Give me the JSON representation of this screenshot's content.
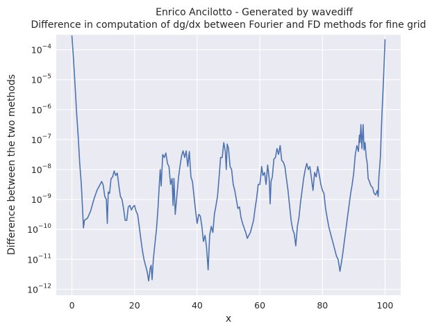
{
  "chart_data": {
    "type": "line",
    "title_line1": "Enrico Ancilotto - Generated by wavediff",
    "title_line2": "Difference in computation of dg/dx between Fourier and FD methods for fine grid",
    "xlabel": "x",
    "ylabel": "Difference between the two methods",
    "xlim": [
      -5,
      105
    ],
    "ylog_lim": [
      -12.2,
      -3.5
    ],
    "yscale": "log",
    "grid": true,
    "x_ticks": [
      "0",
      "20",
      "40",
      "60",
      "80",
      "100"
    ],
    "y_ticks": [
      {
        "base": "10",
        "exp": "−4",
        "log": -4
      },
      {
        "base": "10",
        "exp": "−5",
        "log": -5
      },
      {
        "base": "10",
        "exp": "−6",
        "log": -6
      },
      {
        "base": "10",
        "exp": "−7",
        "log": -7
      },
      {
        "base": "10",
        "exp": "−8",
        "log": -8
      },
      {
        "base": "10",
        "exp": "−9",
        "log": -9
      },
      {
        "base": "10",
        "exp": "−10",
        "log": -10
      },
      {
        "base": "10",
        "exp": "−11",
        "log": -11
      },
      {
        "base": "10",
        "exp": "−12",
        "log": -12
      }
    ],
    "series": [
      {
        "color": "#4c72b0",
        "points": [
          [
            0,
            -3.52
          ],
          [
            0.5,
            -4.3
          ],
          [
            1,
            -5.2
          ],
          [
            1.5,
            -6.1
          ],
          [
            2,
            -6.9
          ],
          [
            2.5,
            -7.8
          ],
          [
            3,
            -8.5
          ],
          [
            3.3,
            -9.1
          ],
          [
            3.7,
            -9.95
          ],
          [
            4,
            -9.7
          ],
          [
            5,
            -9.62
          ],
          [
            6,
            -9.38
          ],
          [
            7,
            -9.0
          ],
          [
            8,
            -8.7
          ],
          [
            9,
            -8.5
          ],
          [
            9.5,
            -8.4
          ],
          [
            10,
            -8.52
          ],
          [
            10.5,
            -8.9
          ],
          [
            11,
            -9.0
          ],
          [
            11.3,
            -9.8
          ],
          [
            11.6,
            -8.75
          ],
          [
            12,
            -8.8
          ],
          [
            12.5,
            -8.3
          ],
          [
            13,
            -8.25
          ],
          [
            13.5,
            -8.05
          ],
          [
            14,
            -8.2
          ],
          [
            14.5,
            -8.12
          ],
          [
            15,
            -8.55
          ],
          [
            15.5,
            -8.9
          ],
          [
            16,
            -9.0
          ],
          [
            16.5,
            -9.3
          ],
          [
            17,
            -9.7
          ],
          [
            17.5,
            -9.7
          ],
          [
            18,
            -9.25
          ],
          [
            18.5,
            -9.2
          ],
          [
            19,
            -9.35
          ],
          [
            19.5,
            -9.25
          ],
          [
            20,
            -9.2
          ],
          [
            20.5,
            -9.4
          ],
          [
            21,
            -9.5
          ],
          [
            21.5,
            -9.9
          ],
          [
            22,
            -10.3
          ],
          [
            22.5,
            -10.7
          ],
          [
            23,
            -11.0
          ],
          [
            23.5,
            -11.2
          ],
          [
            24,
            -11.4
          ],
          [
            24.5,
            -11.72
          ],
          [
            25,
            -11.3
          ],
          [
            25.3,
            -11.2
          ],
          [
            25.6,
            -11.68
          ],
          [
            26,
            -11.0
          ],
          [
            26.5,
            -10.5
          ],
          [
            27,
            -10.0
          ],
          [
            27.5,
            -9.3
          ],
          [
            27.8,
            -8.7
          ],
          [
            28.2,
            -8.0
          ],
          [
            28.5,
            -8.55
          ],
          [
            29,
            -7.5
          ],
          [
            29.5,
            -7.6
          ],
          [
            30,
            -7.45
          ],
          [
            30.5,
            -7.8
          ],
          [
            31,
            -7.9
          ],
          [
            31.5,
            -8.5
          ],
          [
            32,
            -8.3
          ],
          [
            32.3,
            -9.2
          ],
          [
            32.6,
            -8.3
          ],
          [
            33,
            -9.5
          ],
          [
            33.5,
            -8.9
          ],
          [
            34,
            -8.3
          ],
          [
            34.5,
            -7.9
          ],
          [
            35,
            -7.55
          ],
          [
            35.5,
            -7.38
          ],
          [
            36,
            -7.6
          ],
          [
            36.5,
            -7.38
          ],
          [
            37,
            -7.9
          ],
          [
            37.5,
            -7.4
          ],
          [
            38,
            -8.25
          ],
          [
            38.5,
            -8.4
          ],
          [
            39,
            -8.9
          ],
          [
            39.5,
            -9.4
          ],
          [
            40,
            -9.8
          ],
          [
            40.5,
            -9.5
          ],
          [
            41,
            -9.55
          ],
          [
            41.5,
            -9.9
          ],
          [
            42,
            -10.4
          ],
          [
            42.5,
            -10.2
          ],
          [
            43,
            -10.6
          ],
          [
            43.5,
            -11.35
          ],
          [
            44,
            -10.2
          ],
          [
            44.5,
            -9.9
          ],
          [
            45,
            -10.1
          ],
          [
            45.5,
            -9.5
          ],
          [
            46,
            -9.2
          ],
          [
            46.5,
            -8.9
          ],
          [
            47,
            -8.25
          ],
          [
            47.5,
            -7.6
          ],
          [
            48,
            -7.6
          ],
          [
            48.5,
            -7.1
          ],
          [
            49,
            -7.4
          ],
          [
            49.3,
            -8.0
          ],
          [
            49.6,
            -7.15
          ],
          [
            50,
            -7.3
          ],
          [
            50.5,
            -7.9
          ],
          [
            51,
            -8.0
          ],
          [
            51.5,
            -8.5
          ],
          [
            52,
            -8.7
          ],
          [
            52.5,
            -9.0
          ],
          [
            53,
            -9.3
          ],
          [
            53.5,
            -9.25
          ],
          [
            54,
            -9.6
          ],
          [
            54.5,
            -9.8
          ],
          [
            55,
            -9.95
          ],
          [
            55.5,
            -10.1
          ],
          [
            56,
            -10.3
          ],
          [
            56.5,
            -10.2
          ],
          [
            57,
            -10.1
          ],
          [
            57.5,
            -9.9
          ],
          [
            58,
            -9.7
          ],
          [
            58.5,
            -9.3
          ],
          [
            59,
            -8.95
          ],
          [
            59.5,
            -8.5
          ],
          [
            60,
            -8.5
          ],
          [
            60.3,
            -8.25
          ],
          [
            60.6,
            -7.9
          ],
          [
            61,
            -8.2
          ],
          [
            61.5,
            -8.1
          ],
          [
            62,
            -8.5
          ],
          [
            62.5,
            -7.85
          ],
          [
            63,
            -8.3
          ],
          [
            63.3,
            -9.15
          ],
          [
            63.6,
            -8.4
          ],
          [
            64,
            -8.25
          ],
          [
            64.5,
            -7.65
          ],
          [
            65,
            -7.6
          ],
          [
            65.5,
            -7.3
          ],
          [
            66,
            -7.5
          ],
          [
            66.5,
            -7.2
          ],
          [
            67,
            -7.7
          ],
          [
            67.5,
            -7.75
          ],
          [
            68,
            -7.9
          ],
          [
            68.5,
            -8.3
          ],
          [
            69,
            -8.7
          ],
          [
            69.5,
            -9.2
          ],
          [
            70,
            -9.7
          ],
          [
            70.5,
            -10.0
          ],
          [
            71,
            -10.15
          ],
          [
            71.5,
            -10.55
          ],
          [
            72,
            -9.9
          ],
          [
            72.5,
            -9.6
          ],
          [
            73,
            -9.1
          ],
          [
            73.5,
            -8.7
          ],
          [
            74,
            -8.3
          ],
          [
            74.5,
            -8.0
          ],
          [
            75,
            -7.8
          ],
          [
            75.5,
            -8.0
          ],
          [
            76,
            -7.9
          ],
          [
            76.5,
            -8.3
          ],
          [
            77,
            -8.7
          ],
          [
            77.5,
            -8.1
          ],
          [
            78,
            -8.25
          ],
          [
            78.5,
            -7.9
          ],
          [
            79,
            -8.2
          ],
          [
            79.5,
            -8.5
          ],
          [
            80,
            -8.7
          ],
          [
            80.5,
            -8.8
          ],
          [
            81,
            -9.3
          ],
          [
            81.5,
            -9.6
          ],
          [
            82,
            -9.9
          ],
          [
            82.5,
            -10.1
          ],
          [
            83,
            -10.3
          ],
          [
            83.5,
            -10.5
          ],
          [
            84,
            -10.7
          ],
          [
            84.5,
            -10.9
          ],
          [
            85,
            -11.0
          ],
          [
            85.3,
            -11.2
          ],
          [
            85.6,
            -11.4
          ],
          [
            86,
            -11.15
          ],
          [
            86.5,
            -10.8
          ],
          [
            87,
            -10.4
          ],
          [
            87.5,
            -10.0
          ],
          [
            88,
            -9.6
          ],
          [
            88.5,
            -9.2
          ],
          [
            89,
            -8.8
          ],
          [
            89.5,
            -8.5
          ],
          [
            90,
            -8.1
          ],
          [
            90.5,
            -7.5
          ],
          [
            91,
            -7.2
          ],
          [
            91.5,
            -7.4
          ],
          [
            91.8,
            -6.85
          ],
          [
            92,
            -7.1
          ],
          [
            92.3,
            -6.5
          ],
          [
            92.6,
            -7.3
          ],
          [
            93,
            -6.5
          ],
          [
            93.3,
            -7.35
          ],
          [
            93.6,
            -7.1
          ],
          [
            94,
            -7.6
          ],
          [
            94.3,
            -7.8
          ],
          [
            94.6,
            -8.3
          ],
          [
            95,
            -8.4
          ],
          [
            95.5,
            -8.55
          ],
          [
            96,
            -8.6
          ],
          [
            96.5,
            -8.8
          ],
          [
            97,
            -8.85
          ],
          [
            97.5,
            -8.7
          ],
          [
            97.8,
            -8.9
          ],
          [
            98,
            -8.3
          ],
          [
            98.5,
            -7.6
          ],
          [
            99,
            -6.2
          ],
          [
            99.5,
            -5.0
          ],
          [
            100,
            -3.65
          ]
        ]
      }
    ]
  }
}
